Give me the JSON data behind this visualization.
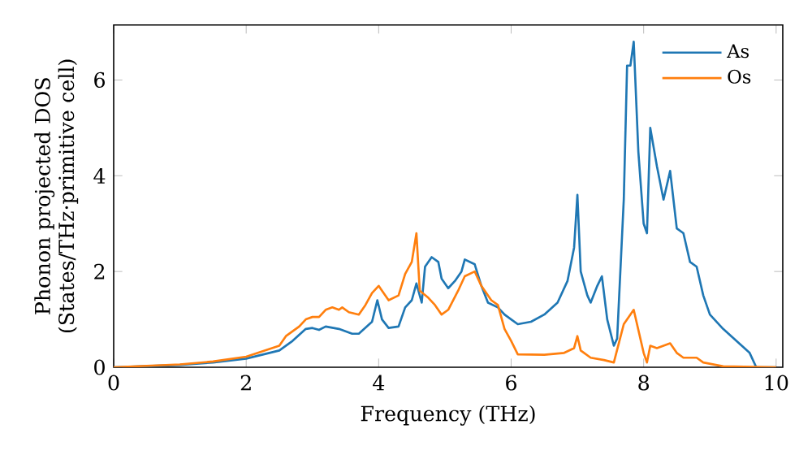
{
  "chart_data": {
    "type": "line",
    "xlabel": "Frequency (THz)",
    "ylabel": "Phonon projected DOS (States/THz·primitive cell)",
    "xlim": [
      0,
      10.1
    ],
    "ylim": [
      0,
      7.15
    ],
    "xticks": [
      0,
      2,
      4,
      6,
      8,
      10
    ],
    "yticks": [
      0,
      2,
      4,
      6
    ],
    "legend": "top right",
    "grid": false,
    "series": [
      {
        "name": "As",
        "color": "#1f77b4",
        "x": [
          0,
          1,
          1.5,
          2,
          2.5,
          2.7,
          2.9,
          3.0,
          3.1,
          3.2,
          3.4,
          3.6,
          3.7,
          3.9,
          3.98,
          4.05,
          4.15,
          4.3,
          4.4,
          4.5,
          4.57,
          4.65,
          4.7,
          4.8,
          4.9,
          4.95,
          5.05,
          5.15,
          5.25,
          5.3,
          5.45,
          5.55,
          5.65,
          5.8,
          5.9,
          6.0,
          6.1,
          6.3,
          6.5,
          6.7,
          6.85,
          6.95,
          7.0,
          7.05,
          7.15,
          7.2,
          7.3,
          7.37,
          7.45,
          7.55,
          7.6,
          7.7,
          7.75,
          7.8,
          7.85,
          7.92,
          8.0,
          8.05,
          8.1,
          8.2,
          8.3,
          8.4,
          8.45,
          8.5,
          8.6,
          8.7,
          8.8,
          8.9,
          9.0,
          9.2,
          9.4,
          9.6,
          9.7,
          10.0
        ],
        "values": [
          0,
          0.05,
          0.1,
          0.18,
          0.35,
          0.55,
          0.8,
          0.82,
          0.78,
          0.85,
          0.8,
          0.7,
          0.7,
          0.95,
          1.4,
          1.0,
          0.82,
          0.85,
          1.25,
          1.4,
          1.75,
          1.35,
          2.1,
          2.3,
          2.2,
          1.85,
          1.65,
          1.8,
          2.0,
          2.25,
          2.15,
          1.7,
          1.35,
          1.25,
          1.1,
          1.0,
          0.9,
          0.95,
          1.1,
          1.35,
          1.8,
          2.5,
          3.6,
          2.0,
          1.5,
          1.35,
          1.7,
          1.9,
          1.0,
          0.45,
          0.6,
          3.5,
          6.3,
          6.3,
          6.8,
          4.5,
          3.0,
          2.8,
          5.0,
          4.2,
          3.5,
          4.1,
          3.5,
          2.9,
          2.8,
          2.2,
          2.1,
          1.5,
          1.1,
          0.8,
          0.55,
          0.3,
          0.0,
          0
        ]
      },
      {
        "name": "Os",
        "color": "#ff7f0e",
        "x": [
          0,
          1,
          1.5,
          2,
          2.5,
          2.6,
          2.8,
          2.9,
          3.0,
          3.1,
          3.2,
          3.3,
          3.4,
          3.45,
          3.55,
          3.7,
          3.8,
          3.9,
          4.0,
          4.05,
          4.15,
          4.3,
          4.4,
          4.5,
          4.57,
          4.62,
          4.75,
          4.85,
          4.95,
          5.05,
          5.2,
          5.3,
          5.45,
          5.55,
          5.7,
          5.8,
          5.9,
          6.0,
          6.1,
          6.5,
          6.8,
          6.95,
          7.0,
          7.05,
          7.2,
          7.4,
          7.55,
          7.7,
          7.85,
          7.95,
          8.0,
          8.05,
          8.1,
          8.2,
          8.3,
          8.4,
          8.5,
          8.6,
          8.8,
          8.9,
          9.2,
          10.0
        ],
        "values": [
          0,
          0.06,
          0.12,
          0.22,
          0.45,
          0.65,
          0.85,
          1.0,
          1.05,
          1.05,
          1.2,
          1.25,
          1.2,
          1.25,
          1.15,
          1.1,
          1.3,
          1.55,
          1.7,
          1.6,
          1.4,
          1.5,
          1.95,
          2.2,
          2.8,
          1.6,
          1.45,
          1.3,
          1.1,
          1.2,
          1.6,
          1.9,
          2.0,
          1.7,
          1.4,
          1.3,
          0.8,
          0.55,
          0.27,
          0.26,
          0.3,
          0.4,
          0.65,
          0.35,
          0.2,
          0.15,
          0.1,
          0.9,
          1.2,
          0.6,
          0.3,
          0.1,
          0.45,
          0.4,
          0.45,
          0.5,
          0.3,
          0.2,
          0.2,
          0.1,
          0.02,
          0
        ]
      }
    ]
  }
}
